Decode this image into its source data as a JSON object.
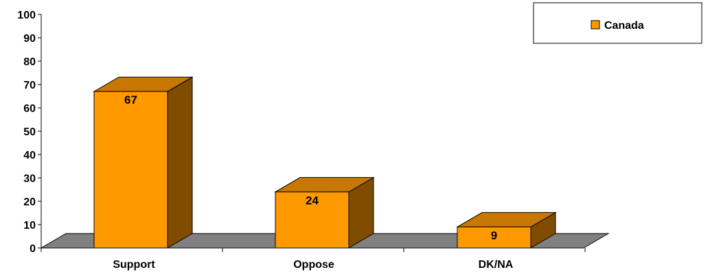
{
  "chart_data": {
    "type": "bar",
    "categories": [
      "Support",
      "Oppose",
      "DK/NA"
    ],
    "series": [
      {
        "name": "Canada",
        "values": [
          67,
          24,
          9
        ]
      }
    ],
    "data_labels": [
      "67",
      "24",
      "9"
    ],
    "ylim": [
      0,
      100
    ],
    "yticks": [
      "0",
      "10",
      "20",
      "30",
      "40",
      "50",
      "60",
      "70",
      "80",
      "90",
      "100"
    ],
    "grid": false,
    "legend": "top-right",
    "style": "3d",
    "colors": {
      "bar_front": "#FF9900",
      "bar_top": "#C87800",
      "bar_side": "#7F4C00",
      "floor": "#808080"
    }
  }
}
